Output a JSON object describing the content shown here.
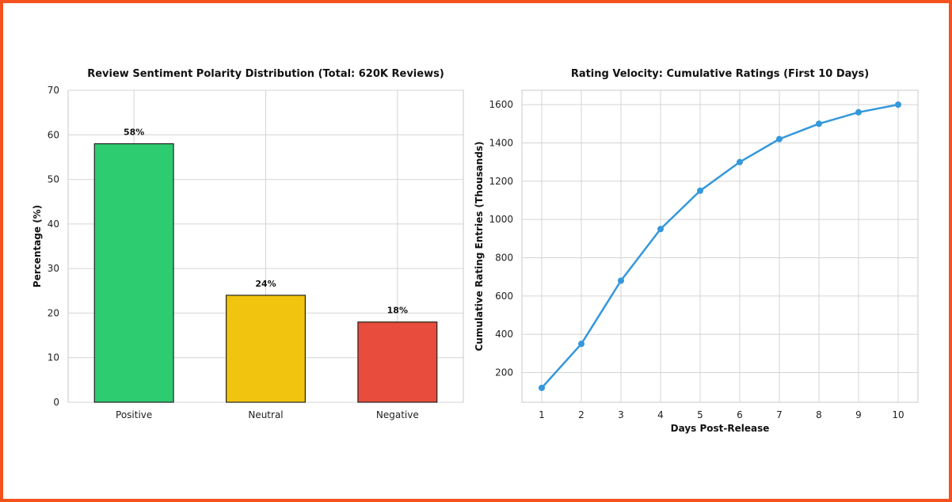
{
  "chart_data": [
    {
      "type": "bar",
      "title": "Review Sentiment Polarity Distribution (Total: 620K Reviews)",
      "xlabel": "",
      "ylabel": "Percentage (%)",
      "categories": [
        "Positive",
        "Neutral",
        "Negative"
      ],
      "values": [
        58,
        24,
        18
      ],
      "value_labels": [
        "58%",
        "24%",
        "18%"
      ],
      "colors": [
        "#2ecc71",
        "#f1c40f",
        "#e74c3c"
      ],
      "ylim": [
        0,
        70
      ],
      "yticks": [
        0,
        10,
        20,
        30,
        40,
        50,
        60,
        70
      ],
      "grid": true
    },
    {
      "type": "line",
      "title": "Rating Velocity: Cumulative Ratings (First 10 Days)",
      "xlabel": "Days Post-Release",
      "ylabel": "Cumulative Rating Entries (Thousands)",
      "x": [
        1,
        2,
        3,
        4,
        5,
        6,
        7,
        8,
        9,
        10
      ],
      "y": [
        120,
        350,
        680,
        950,
        1150,
        1300,
        1420,
        1500,
        1560,
        1600
      ],
      "color": "#3498db",
      "xlim": [
        0.5,
        10.5
      ],
      "ylim": [
        45,
        1675
      ],
      "yticks": [
        200,
        400,
        600,
        800,
        1000,
        1200,
        1400,
        1600
      ],
      "grid": true
    }
  ]
}
